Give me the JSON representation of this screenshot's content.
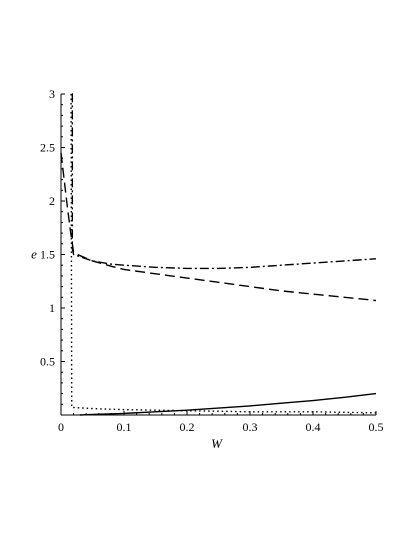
{
  "chart_data": {
    "type": "line",
    "title": "",
    "xlabel": "W",
    "ylabel": "e",
    "xlim": [
      0,
      0.5
    ],
    "ylim": [
      0,
      3
    ],
    "xticks": [
      "0",
      "0.1",
      "0.2",
      "0.3",
      "0.4",
      "0.5"
    ],
    "yticks": [
      "0.5",
      "1",
      "1.5",
      "2",
      "2.5",
      "3"
    ],
    "grid": false,
    "legend": "none",
    "series": [
      {
        "style": "dashed",
        "x": [
          0.0,
          0.005,
          0.01,
          0.015,
          0.02,
          0.03,
          0.05,
          0.08,
          0.1,
          0.15,
          0.2,
          0.25,
          0.3,
          0.35,
          0.4,
          0.45,
          0.5
        ],
        "y": [
          2.45,
          2.2,
          1.95,
          1.72,
          1.52,
          1.49,
          1.44,
          1.39,
          1.36,
          1.32,
          1.28,
          1.24,
          1.2,
          1.16,
          1.13,
          1.1,
          1.07
        ]
      },
      {
        "style": "dashdot",
        "x": [
          0.018,
          0.018,
          0.02,
          0.03,
          0.05,
          0.08,
          0.1,
          0.15,
          0.2,
          0.25,
          0.3,
          0.35,
          0.4,
          0.45,
          0.5
        ],
        "y": [
          3.0,
          1.55,
          1.5,
          1.48,
          1.44,
          1.41,
          1.4,
          1.38,
          1.37,
          1.37,
          1.38,
          1.4,
          1.42,
          1.44,
          1.46
        ],
        "start": [
          0.017,
          3.0
        ]
      },
      {
        "style": "dotted",
        "x": [
          0.016,
          0.017,
          0.02,
          0.05,
          0.1,
          0.2,
          0.3,
          0.4,
          0.5
        ],
        "y": [
          3.0,
          0.07,
          0.07,
          0.06,
          0.05,
          0.04,
          0.03,
          0.03,
          0.02
        ]
      },
      {
        "style": "solid",
        "x": [
          0.03,
          0.05,
          0.1,
          0.15,
          0.2,
          0.25,
          0.3,
          0.35,
          0.4,
          0.45,
          0.5
        ],
        "y": [
          0.0,
          0.005,
          0.015,
          0.03,
          0.045,
          0.065,
          0.085,
          0.11,
          0.135,
          0.165,
          0.2
        ]
      }
    ]
  }
}
